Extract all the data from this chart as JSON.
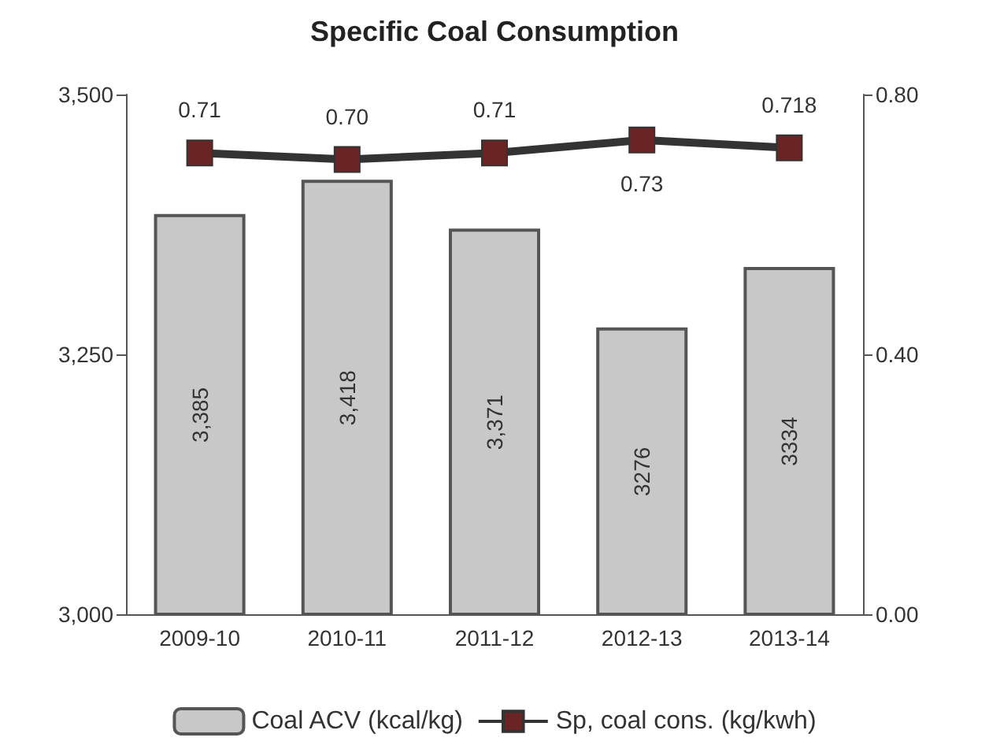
{
  "chart_data": {
    "type": "bar",
    "title": "Specific Coal Consumption",
    "categories": [
      "2009-10",
      "2010-11",
      "2011-12",
      "2012-13",
      "2013-14"
    ],
    "series": [
      {
        "name": "Coal ACV (kcal/kg)",
        "color": "#c8c8c8",
        "values": [
          3385,
          3418,
          3371,
          3276,
          3334
        ],
        "value_labels": [
          "3,385",
          "3,418",
          "3,371",
          "3276",
          "3334"
        ]
      },
      {
        "name": "Sp, coal cons. (kg/kwh)",
        "type": "line",
        "axis": "y2",
        "color": "#6b2424",
        "marker": "square",
        "values": [
          0.71,
          0.7,
          0.71,
          0.73,
          0.718
        ],
        "value_labels": [
          "0.71",
          "0.70",
          "0.71",
          "0.73",
          "0.718"
        ]
      }
    ],
    "ylim": [
      3000,
      3500
    ],
    "yticks": [
      {
        "value": 3000,
        "label": "3,000"
      },
      {
        "value": 3250,
        "label": "3,250"
      },
      {
        "value": 3500,
        "label": "3,500"
      }
    ],
    "y2lim": [
      0,
      0.8
    ],
    "y2ticks": [
      {
        "value": 0,
        "label": "0.00"
      },
      {
        "value": 0.4,
        "label": "0.40"
      },
      {
        "value": 0.8,
        "label": "0.80"
      }
    ],
    "grid": false,
    "legend": "bottom"
  }
}
